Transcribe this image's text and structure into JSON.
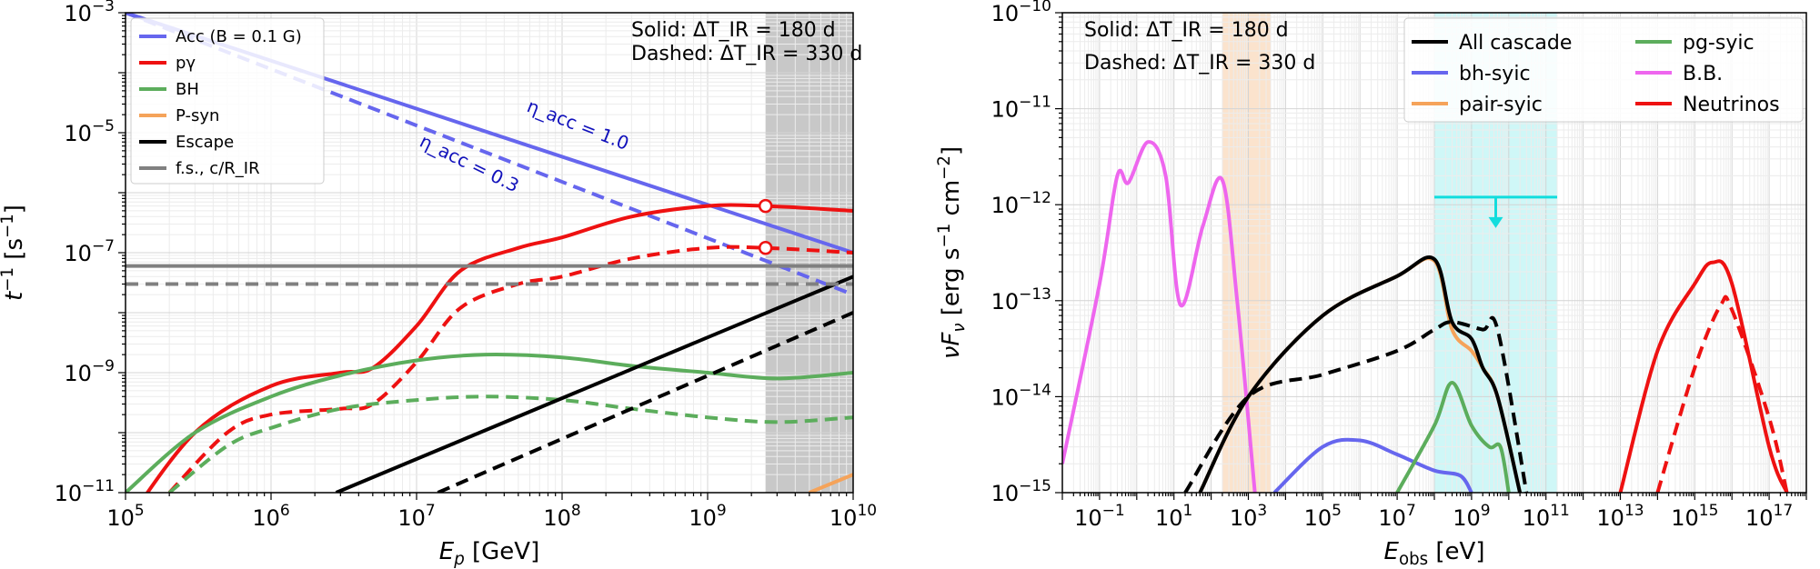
{
  "chart_data": [
    {
      "type": "line",
      "xlabel": "E_p [GeV]",
      "ylabel": "t^-1 [s^-1]",
      "xscale": "log",
      "yscale": "log",
      "xlim": [
        100000,
        10000000000
      ],
      "ylim": [
        1e-11,
        0.001
      ],
      "x_ticks": [
        {
          "label": "10",
          "exp": "5"
        },
        {
          "label": "10",
          "exp": "6"
        },
        {
          "label": "10",
          "exp": "7"
        },
        {
          "label": "10",
          "exp": "8"
        },
        {
          "label": "10",
          "exp": "9"
        },
        {
          "label": "10",
          "exp": "10"
        }
      ],
      "y_ticks": [
        {
          "label": "10",
          "exp": "−11"
        },
        {
          "label": "10",
          "exp": "−9"
        },
        {
          "label": "10",
          "exp": "−7"
        },
        {
          "label": "10",
          "exp": "−5"
        },
        {
          "label": "10",
          "exp": "−3"
        }
      ],
      "grid": true,
      "legend_position": "top-left",
      "legend": [
        {
          "text": "Acc (B = 0.1 G)",
          "color": "#6666ee"
        },
        {
          "text": "pγ",
          "color": "#ee1111"
        },
        {
          "text": "BH",
          "color": "#5cad5c"
        },
        {
          "text": "P-syn",
          "color": "#f5a35a"
        },
        {
          "text": "Escape",
          "color": "#000000"
        },
        {
          "text": "f.s., c/R_IR",
          "color": "#808080"
        }
      ],
      "annotations": {
        "solid_note": "Solid: ΔT_IR = 180 d",
        "dashed_note": "Dashed: ΔT_IR = 330 d",
        "eta_1": "η_acc = 1.0",
        "eta_03": "η_acc = 0.3"
      },
      "shaded_region": {
        "x": [
          2500000000,
          10000000000
        ],
        "color": "#c8c8c8"
      },
      "markers": [
        {
          "x": 2500000000,
          "y": 6e-07
        },
        {
          "x": 2500000000,
          "y": 1.2e-07
        }
      ],
      "series": [
        {
          "style": "solid",
          "color": "#6666ee",
          "points": [
            [
              100000,
              0.001
            ],
            [
              10000000000,
              1e-07
            ]
          ]
        },
        {
          "style": "dashed",
          "color": "#6666ee",
          "points": [
            [
              100000,
              0.001
            ],
            [
              10000000000,
              2e-08
            ]
          ]
        },
        {
          "style": "solid",
          "color": "#ee1111",
          "points": [
            [
              100000,
              3e-12
            ],
            [
              300000,
              1e-10
            ],
            [
              1000000,
              6e-10
            ],
            [
              3000000,
              1e-09
            ],
            [
              5000000,
              1.2e-09
            ],
            [
              10000000,
              6e-09
            ],
            [
              20000000,
              5e-08
            ],
            [
              50000000,
              1.2e-07
            ],
            [
              100000000,
              1.8e-07
            ],
            [
              300000000,
              4e-07
            ],
            [
              1000000000,
              6e-07
            ],
            [
              2500000000,
              6e-07
            ],
            [
              10000000000,
              5e-07
            ]
          ]
        },
        {
          "style": "dashed",
          "color": "#ee1111",
          "points": [
            [
              200000,
              1e-11
            ],
            [
              500000,
              1e-10
            ],
            [
              1000000,
              2e-10
            ],
            [
              3000000,
              2.5e-10
            ],
            [
              5000000,
              3e-10
            ],
            [
              10000000,
              1.5e-09
            ],
            [
              20000000,
              1.2e-08
            ],
            [
              50000000,
              3e-08
            ],
            [
              100000000,
              4e-08
            ],
            [
              300000000,
              8e-08
            ],
            [
              1000000000,
              1.2e-07
            ],
            [
              2500000000,
              1.2e-07
            ],
            [
              10000000000,
              1e-07
            ]
          ]
        },
        {
          "style": "solid",
          "color": "#5cad5c",
          "points": [
            [
              100000,
              1e-11
            ],
            [
              300000,
              1e-10
            ],
            [
              1000000,
              4e-10
            ],
            [
              3000000,
              9e-10
            ],
            [
              10000000,
              1.6e-09
            ],
            [
              30000000,
              2e-09
            ],
            [
              100000000,
              1.8e-09
            ],
            [
              300000000,
              1.3e-09
            ],
            [
              1000000000,
              1e-09
            ],
            [
              3000000000,
              8e-10
            ],
            [
              10000000000,
              1e-09
            ]
          ]
        },
        {
          "style": "dashed",
          "color": "#5cad5c",
          "points": [
            [
              200000,
              1e-11
            ],
            [
              500000,
              6e-11
            ],
            [
              1000000,
              1.2e-10
            ],
            [
              3000000,
              2.5e-10
            ],
            [
              10000000,
              3.5e-10
            ],
            [
              30000000,
              4e-10
            ],
            [
              100000000,
              3.5e-10
            ],
            [
              300000000,
              2.5e-10
            ],
            [
              1000000000,
              1.8e-10
            ],
            [
              3000000000,
              1.5e-10
            ],
            [
              10000000000,
              1.8e-10
            ]
          ]
        },
        {
          "style": "solid",
          "color": "#f5a35a",
          "points": [
            [
              5000000000,
              1e-11
            ],
            [
              10000000000,
              2e-11
            ]
          ]
        },
        {
          "style": "solid",
          "color": "#000000",
          "points": [
            [
              2800000,
              1e-11
            ],
            [
              10000000000,
              4e-08
            ]
          ]
        },
        {
          "style": "dashed",
          "color": "#000000",
          "points": [
            [
              14000000,
              1e-11
            ],
            [
              10000000000,
              1e-08
            ]
          ]
        },
        {
          "style": "solid",
          "color": "#808080",
          "points": [
            [
              100000,
              6e-08
            ],
            [
              10000000000,
              6e-08
            ]
          ]
        },
        {
          "style": "dashed",
          "color": "#808080",
          "points": [
            [
              100000,
              3e-08
            ],
            [
              10000000000,
              3e-08
            ]
          ]
        }
      ]
    },
    {
      "type": "line",
      "xlabel": "E_obs [eV]",
      "ylabel": "νF_ν [erg s^-1 cm^-2]",
      "xscale": "log",
      "yscale": "log",
      "xlim": [
        0.01,
        1e+18
      ],
      "ylim": [
        1e-15,
        1e-10
      ],
      "x_ticks": [
        {
          "label": "10",
          "exp": "−1",
          "value": 0.1
        },
        {
          "label": "10",
          "exp": "1",
          "value": 10
        },
        {
          "label": "10",
          "exp": "3",
          "value": 1000
        },
        {
          "label": "10",
          "exp": "5",
          "value": 100000
        },
        {
          "label": "10",
          "exp": "7",
          "value": 10000000
        },
        {
          "label": "10",
          "exp": "9",
          "value": 1000000000
        },
        {
          "label": "10",
          "exp": "11",
          "value": 100000000000
        },
        {
          "label": "10",
          "exp": "13",
          "value": 10000000000000
        },
        {
          "label": "10",
          "exp": "15",
          "value": 1000000000000000
        },
        {
          "label": "10",
          "exp": "17",
          "value": 100000000000000000
        }
      ],
      "y_ticks": [
        {
          "label": "10",
          "exp": "−15"
        },
        {
          "label": "10",
          "exp": "−14"
        },
        {
          "label": "10",
          "exp": "−13"
        },
        {
          "label": "10",
          "exp": "−12"
        },
        {
          "label": "10",
          "exp": "−11"
        },
        {
          "label": "10",
          "exp": "−10"
        }
      ],
      "grid": true,
      "legend_position": "top-right",
      "legend": [
        {
          "text": "All cascade",
          "color": "#000000"
        },
        {
          "text": "bh-syic",
          "color": "#6666ee"
        },
        {
          "text": "pair-syic",
          "color": "#f5a35a"
        },
        {
          "text": "pg-syic",
          "color": "#5cad5c"
        },
        {
          "text": "B.B.",
          "color": "#ee66ee"
        },
        {
          "text": "Neutrinos",
          "color": "#ee1111"
        }
      ],
      "annotations": {
        "solid_note": "Solid: ΔT_IR = 180 d",
        "dashed_note": "Dashed: ΔT_IR = 330 d"
      },
      "bands": [
        {
          "x": [
            200,
            4000
          ],
          "color": "#fbe3cd"
        },
        {
          "x": 100000000,
          "x_end": 200000000000,
          "color": "#cff7f7"
        }
      ],
      "upper_limit": {
        "x": [
          100000000,
          200000000000
        ],
        "y": 1.2e-12,
        "color": "#11dddd"
      },
      "series": [
        {
          "style": "solid",
          "color": "#ee66ee",
          "points": [
            [
              0.01,
              2e-15
            ],
            [
              0.1,
              1.5e-13
            ],
            [
              0.3,
              2e-12
            ],
            [
              0.6,
              1.7e-12
            ],
            [
              2,
              4.5e-12
            ],
            [
              6,
              2e-12
            ],
            [
              15,
              9e-14
            ],
            [
              60,
              6e-13
            ],
            [
              200,
              1.8e-12
            ],
            [
              500,
              1e-13
            ],
            [
              1500,
              1e-15
            ]
          ]
        },
        {
          "style": "solid",
          "color": "#f5a35a",
          "points": [
            [
              50,
              1e-15
            ],
            [
              1000,
              1e-14
            ],
            [
              100000,
              7e-14
            ],
            [
              10000000,
              1.8e-13
            ],
            [
              100000000,
              2.6e-13
            ],
            [
              300000000,
              5e-14
            ],
            [
              1000000000,
              3e-14
            ],
            [
              2000000000,
              2e-14
            ],
            [
              5000000000,
              1e-14
            ],
            [
              20000000000,
              1e-15
            ]
          ]
        },
        {
          "style": "solid",
          "color": "#000000",
          "points": [
            [
              50,
              1e-15
            ],
            [
              1000,
              1e-14
            ],
            [
              100000,
              7e-14
            ],
            [
              10000000,
              1.8e-13
            ],
            [
              100000000,
              2.7e-13
            ],
            [
              300000000,
              6e-14
            ],
            [
              1000000000,
              4e-14
            ],
            [
              2000000000,
              2e-14
            ],
            [
              5000000000,
              1e-14
            ],
            [
              20000000000,
              1e-15
            ]
          ]
        },
        {
          "style": "dashed",
          "color": "#000000",
          "points": [
            [
              20,
              1e-15
            ],
            [
              1000,
              1e-14
            ],
            [
              100000,
              1.7e-14
            ],
            [
              10000000,
              3e-14
            ],
            [
              100000000,
              5e-14
            ],
            [
              300000000,
              6e-14
            ],
            [
              2000000000,
              5e-14
            ],
            [
              5000000000,
              5e-14
            ],
            [
              30000000000,
              1e-15
            ]
          ]
        },
        {
          "style": "solid",
          "color": "#6666ee",
          "points": [
            [
              5000,
              1e-15
            ],
            [
              100000,
              3e-15
            ],
            [
              1000000,
              3.5e-15
            ],
            [
              10000000,
              2.5e-15
            ],
            [
              100000000,
              1.7e-15
            ],
            [
              500000000,
              1.5e-15
            ],
            [
              1000000000,
              1e-15
            ]
          ]
        },
        {
          "style": "solid",
          "color": "#5cad5c",
          "points": [
            [
              10000000,
              1e-15
            ],
            [
              100000000,
              5e-15
            ],
            [
              300000000,
              1.4e-14
            ],
            [
              1000000000,
              5e-15
            ],
            [
              3000000000,
              3e-15
            ],
            [
              6000000000,
              3e-15
            ],
            [
              10000000000,
              1e-15
            ]
          ]
        },
        {
          "style": "solid",
          "color": "#ee1111",
          "points": [
            [
              10000000000000,
              1e-15
            ],
            [
              100000000000000,
              3e-14
            ],
            [
              1000000000000000,
              1.5e-13
            ],
            [
              3000000000000000,
              2.5e-13
            ],
            [
              10000000000000000,
              1.5e-13
            ],
            [
              100000000000000000,
              3e-15
            ],
            [
              300000000000000000,
              1e-15
            ]
          ]
        },
        {
          "style": "dashed",
          "color": "#ee1111",
          "points": [
            [
              100000000000000,
              1e-15
            ],
            [
              1000000000000000,
              2e-14
            ],
            [
              5000000000000000,
              9e-14
            ],
            [
              10000000000000000,
              8e-14
            ],
            [
              100000000000000000,
              6e-15
            ],
            [
              300000000000000000,
              1e-15
            ]
          ]
        }
      ]
    }
  ]
}
